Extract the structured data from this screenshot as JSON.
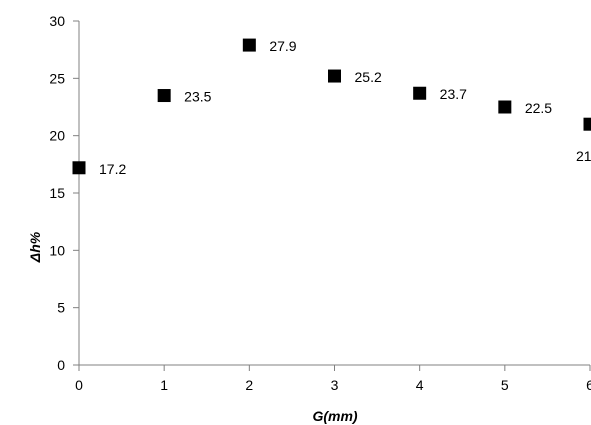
{
  "chart_data": {
    "type": "scatter",
    "xlabel": "G(mm)",
    "ylabel": "Δh%",
    "xlim": [
      0,
      6
    ],
    "ylim": [
      0,
      30
    ],
    "xticks": [
      0,
      1,
      2,
      3,
      4,
      5,
      6
    ],
    "yticks": [
      0,
      5,
      10,
      15,
      20,
      25,
      30
    ],
    "grid": false,
    "marker": "square",
    "marker_color": "#000000",
    "series": [
      {
        "x": [
          0,
          1,
          2,
          3,
          4,
          5,
          6
        ],
        "y": [
          17.2,
          23.5,
          27.9,
          25.2,
          23.7,
          22.5,
          21.0
        ],
        "labels": [
          "17.2",
          "23.5",
          "27.9",
          "25.2",
          "23.7",
          "22.5",
          "21"
        ]
      }
    ]
  }
}
